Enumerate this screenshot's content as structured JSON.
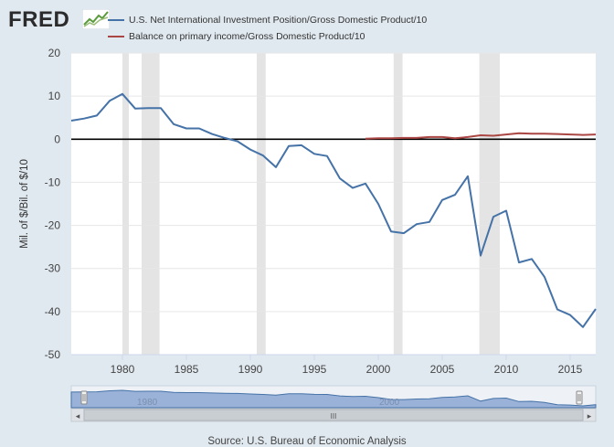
{
  "logo": {
    "text": "FRED",
    "icon": "sparkline-icon"
  },
  "legend": [
    {
      "label": "U.S. Net International Investment Position/Gross Domestic Product/10",
      "color": "#4572a7"
    },
    {
      "label": "Balance on primary income/Gross Domestic Product/10",
      "color": "#aa4643"
    }
  ],
  "source": "Source: U.S. Bureau of Economic Analysis",
  "navigator": {
    "labels": [
      "1980",
      "2000"
    ],
    "scroll_glyph": "III",
    "left_arrow": "◂",
    "right_arrow": "▸"
  },
  "chart_data": {
    "type": "line",
    "ylabel": "Mil. of $/Bil. of $/10",
    "xlim": [
      1976,
      2017
    ],
    "ylim": [
      -50,
      20
    ],
    "yticks": [
      20,
      10,
      0,
      -10,
      -20,
      -30,
      -40,
      -50
    ],
    "xticks": [
      1980,
      1985,
      1990,
      1995,
      2000,
      2005,
      2010,
      2015
    ],
    "recessions": [
      [
        1980.0,
        1980.5
      ],
      [
        1981.5,
        1982.9
      ],
      [
        1990.5,
        1991.2
      ],
      [
        2001.2,
        2001.9
      ],
      [
        2007.9,
        2009.5
      ]
    ],
    "series": [
      {
        "name": "U.S. Net International Investment Position/Gross Domestic Product/10",
        "color": "#4572a7",
        "x": [
          1976,
          1977,
          1978,
          1979,
          1980,
          1981,
          1982,
          1983,
          1984,
          1985,
          1986,
          1987,
          1988,
          1989,
          1990,
          1991,
          1992,
          1993,
          1994,
          1995,
          1996,
          1997,
          1998,
          1999,
          2000,
          2001,
          2002,
          2003,
          2004,
          2005,
          2006,
          2007,
          2008,
          2009,
          2010,
          2011,
          2012,
          2013,
          2014,
          2015,
          2016,
          2017
        ],
        "values": [
          4.3,
          4.8,
          5.5,
          8.9,
          10.5,
          7.1,
          7.2,
          7.2,
          3.5,
          2.5,
          2.5,
          1.2,
          0.3,
          -0.5,
          -2.4,
          -3.8,
          -6.5,
          -1.6,
          -1.4,
          -3.4,
          -3.9,
          -9.1,
          -11.3,
          -10.3,
          -15,
          -21.4,
          -21.8,
          -19.7,
          -19.2,
          -14.1,
          -12.9,
          -8.6,
          -27,
          -18,
          -16.6,
          -28.6,
          -27.8,
          -32,
          -39.5,
          -40.8,
          -43.6,
          -39.4
        ]
      },
      {
        "name": "Balance on primary income/Gross Domestic Product/10",
        "color": "#aa4643",
        "x": [
          1999,
          2000,
          2001,
          2002,
          2003,
          2004,
          2005,
          2006,
          2007,
          2008,
          2009,
          2010,
          2011,
          2012,
          2013,
          2014,
          2015,
          2016,
          2017
        ],
        "values": [
          0.1,
          0.2,
          0.2,
          0.3,
          0.3,
          0.5,
          0.5,
          0.2,
          0.5,
          0.9,
          0.8,
          1.1,
          1.4,
          1.3,
          1.3,
          1.2,
          1.1,
          1.0,
          1.1
        ]
      }
    ]
  }
}
